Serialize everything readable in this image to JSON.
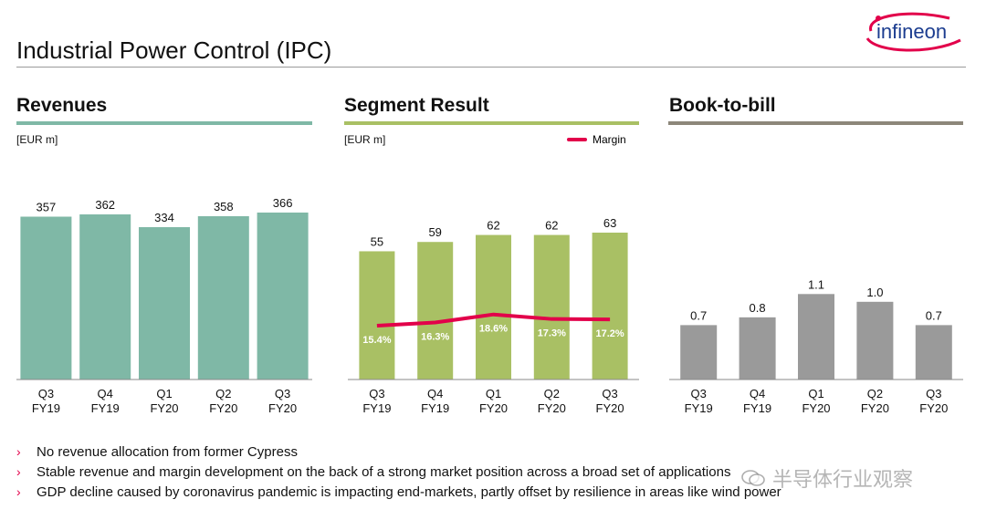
{
  "page": {
    "title": "Industrial Power Control (IPC)",
    "logo_text": "infineon"
  },
  "colors": {
    "revenue_bar": "#7fb8a6",
    "segment_bar": "#a9c064",
    "btb_bar": "#9a9a9a",
    "margin_line": "#e2004a",
    "rule_revenue": "#7fb8a6",
    "rule_segment": "#a9c064",
    "rule_btb": "#8d877a"
  },
  "panels": {
    "revenues": {
      "heading": "Revenues",
      "unit": "[EUR m]"
    },
    "segment": {
      "heading": "Segment Result",
      "unit": "[EUR m]",
      "legend": "Margin"
    },
    "btb": {
      "heading": "Book-to-bill"
    }
  },
  "chart_data": [
    {
      "type": "bar",
      "title": "Revenues",
      "unit": "[EUR m]",
      "categories": [
        [
          "Q3",
          "FY19"
        ],
        [
          "Q4",
          "FY19"
        ],
        [
          "Q1",
          "FY20"
        ],
        [
          "Q2",
          "FY20"
        ],
        [
          "Q3",
          "FY20"
        ]
      ],
      "values": [
        357,
        362,
        334,
        358,
        366
      ],
      "labels": [
        "357",
        "362",
        "334",
        "358",
        "366"
      ],
      "ylim": [
        0,
        460
      ]
    },
    {
      "type": "bar",
      "title": "Segment Result",
      "unit": "[EUR m]",
      "categories": [
        [
          "Q3",
          "FY19"
        ],
        [
          "Q4",
          "FY19"
        ],
        [
          "Q1",
          "FY20"
        ],
        [
          "Q2",
          "FY20"
        ],
        [
          "Q3",
          "FY20"
        ]
      ],
      "values": [
        55,
        59,
        62,
        62,
        63
      ],
      "labels": [
        "55",
        "59",
        "62",
        "62",
        "63"
      ],
      "ylim": [
        0,
        90
      ],
      "series": [
        {
          "name": "Margin",
          "type": "line",
          "values": [
            15.4,
            16.3,
            18.6,
            17.3,
            17.2
          ],
          "labels": [
            "15.4%",
            "16.3%",
            "18.6%",
            "17.3%",
            "17.2%"
          ],
          "ylim": [
            0,
            60
          ]
        }
      ],
      "legend": "top-right"
    },
    {
      "type": "bar",
      "title": "Book-to-bill",
      "categories": [
        [
          "Q3",
          "FY19"
        ],
        [
          "Q4",
          "FY19"
        ],
        [
          "Q1",
          "FY20"
        ],
        [
          "Q2",
          "FY20"
        ],
        [
          "Q3",
          "FY20"
        ]
      ],
      "values": [
        0.7,
        0.8,
        1.1,
        1.0,
        0.7
      ],
      "labels": [
        "0.7",
        "0.8",
        "1.1",
        "1.0",
        "0.7"
      ],
      "ylim": [
        0,
        2.7
      ]
    }
  ],
  "bullets": [
    "No revenue allocation from former Cypress",
    "Stable revenue and margin development on the back of a strong market position across a broad set of applications",
    "GDP decline caused by coronavirus pandemic is impacting end-markets, partly offset by resilience in areas like wind power"
  ],
  "bullet_marker": "›",
  "watermark": "半导体行业观察"
}
